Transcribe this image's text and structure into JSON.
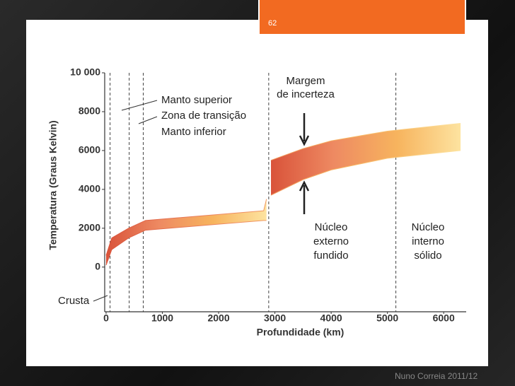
{
  "slide": {
    "number": "62",
    "footer": "Nuno Correia 2011/12"
  },
  "chart_data": {
    "type": "band",
    "x_label": "Profundidade (km)",
    "y_label": "Temperatura (Graus Kelvin)",
    "x": [
      0,
      100,
      400,
      700,
      2800,
      2850,
      2900,
      2930,
      3500,
      4000,
      5000,
      6300
    ],
    "series": [
      {
        "values": [
          100,
          900,
          1500,
          1900,
          2400,
          2400,
          null,
          3700,
          4500,
          5000,
          5600,
          6000
        ]
      },
      {
        "values": [
          600,
          1500,
          2000,
          2400,
          2900,
          3500,
          null,
          5500,
          6100,
          6500,
          7000,
          7400
        ]
      }
    ],
    "colors": [
      "#d9533a",
      "#ee8a62",
      "#f7b45e",
      "#fde3a0"
    ],
    "xlim": [
      0,
      6400
    ],
    "ylim": [
      -2300,
      10000
    ],
    "xticks": [
      0,
      1000,
      2000,
      3000,
      4000,
      5000,
      6000
    ],
    "yticks": [
      0,
      2000,
      4000,
      6000,
      8000,
      {
        "value": 10000,
        "label": "10 000"
      }
    ],
    "boundaries": [
      70,
      410,
      660,
      2890,
      5150
    ],
    "annotations": {
      "upper_mantle": "Manto superior",
      "transition": "Zona de transição",
      "lower_mantle": "Manto inferior",
      "uncertainty": [
        "Margem",
        "de incerteza"
      ],
      "outer_core": [
        "Núcleo",
        "externo",
        "fundido"
      ],
      "inner_core": [
        "Núcleo",
        "interno",
        "sólido"
      ],
      "crust": "Crusta"
    }
  }
}
